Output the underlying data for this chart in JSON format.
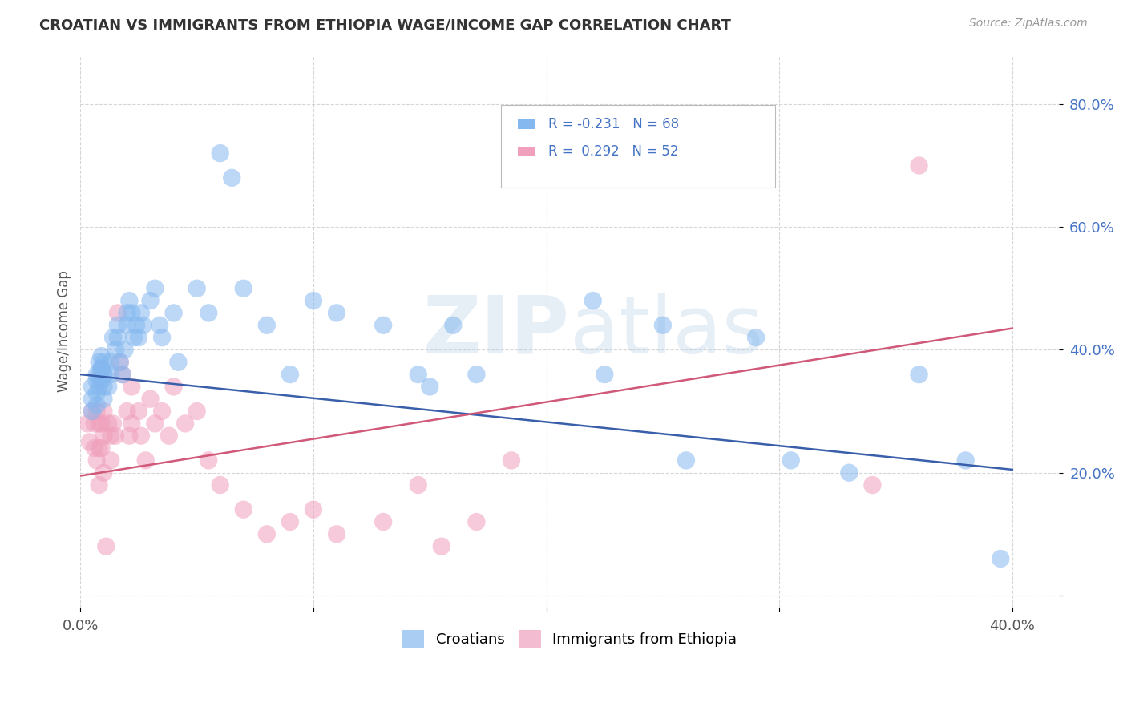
{
  "title": "CROATIAN VS IMMIGRANTS FROM ETHIOPIA WAGE/INCOME GAP CORRELATION CHART",
  "source": "Source: ZipAtlas.com",
  "ylabel": "Wage/Income Gap",
  "xlim": [
    0.0,
    0.42
  ],
  "ylim": [
    -0.02,
    0.88
  ],
  "yticks": [
    0.0,
    0.2,
    0.4,
    0.6,
    0.8
  ],
  "xticks": [
    0.0,
    0.1,
    0.2,
    0.3,
    0.4
  ],
  "background_color": "#ffffff",
  "grid_color": "#cccccc",
  "croatians_color": "#85b8ef",
  "ethiopia_color": "#f0a0bc",
  "line_blue": "#3a5faa",
  "line_pink": "#d05878",
  "label_blue": "#4472c4",
  "blue_x": [
    0.005,
    0.005,
    0.005,
    0.007,
    0.007,
    0.007,
    0.007,
    0.008,
    0.008,
    0.008,
    0.009,
    0.009,
    0.009,
    0.009,
    0.01,
    0.01,
    0.01,
    0.01,
    0.01,
    0.012,
    0.013,
    0.013,
    0.014,
    0.015,
    0.016,
    0.016,
    0.017,
    0.018,
    0.019,
    0.02,
    0.02,
    0.021,
    0.022,
    0.023,
    0.024,
    0.025,
    0.026,
    0.027,
    0.03,
    0.032,
    0.034,
    0.035,
    0.04,
    0.042,
    0.05,
    0.055,
    0.06,
    0.065,
    0.07,
    0.08,
    0.09,
    0.1,
    0.11,
    0.13,
    0.145,
    0.15,
    0.16,
    0.17,
    0.22,
    0.225,
    0.25,
    0.26,
    0.29,
    0.305,
    0.33,
    0.36,
    0.38,
    0.395
  ],
  "blue_y": [
    0.34,
    0.32,
    0.3,
    0.36,
    0.35,
    0.33,
    0.31,
    0.38,
    0.36,
    0.34,
    0.37,
    0.39,
    0.37,
    0.35,
    0.36,
    0.34,
    0.32,
    0.38,
    0.36,
    0.34,
    0.38,
    0.36,
    0.42,
    0.4,
    0.44,
    0.42,
    0.38,
    0.36,
    0.4,
    0.46,
    0.44,
    0.48,
    0.46,
    0.42,
    0.44,
    0.42,
    0.46,
    0.44,
    0.48,
    0.5,
    0.44,
    0.42,
    0.46,
    0.38,
    0.5,
    0.46,
    0.72,
    0.68,
    0.5,
    0.44,
    0.36,
    0.48,
    0.46,
    0.44,
    0.36,
    0.34,
    0.44,
    0.36,
    0.48,
    0.36,
    0.44,
    0.22,
    0.42,
    0.22,
    0.2,
    0.36,
    0.22,
    0.06
  ],
  "pink_x": [
    0.003,
    0.004,
    0.005,
    0.006,
    0.006,
    0.007,
    0.007,
    0.008,
    0.008,
    0.008,
    0.009,
    0.009,
    0.01,
    0.01,
    0.01,
    0.011,
    0.012,
    0.013,
    0.013,
    0.014,
    0.015,
    0.016,
    0.017,
    0.018,
    0.02,
    0.021,
    0.022,
    0.022,
    0.025,
    0.026,
    0.028,
    0.03,
    0.032,
    0.035,
    0.038,
    0.04,
    0.045,
    0.05,
    0.055,
    0.06,
    0.07,
    0.08,
    0.09,
    0.1,
    0.11,
    0.13,
    0.145,
    0.155,
    0.17,
    0.185,
    0.34,
    0.36
  ],
  "pink_y": [
    0.28,
    0.25,
    0.3,
    0.28,
    0.24,
    0.3,
    0.22,
    0.28,
    0.24,
    0.18,
    0.28,
    0.24,
    0.3,
    0.26,
    0.2,
    0.08,
    0.28,
    0.26,
    0.22,
    0.28,
    0.26,
    0.46,
    0.38,
    0.36,
    0.3,
    0.26,
    0.34,
    0.28,
    0.3,
    0.26,
    0.22,
    0.32,
    0.28,
    0.3,
    0.26,
    0.34,
    0.28,
    0.3,
    0.22,
    0.18,
    0.14,
    0.1,
    0.12,
    0.14,
    0.1,
    0.12,
    0.18,
    0.08,
    0.12,
    0.22,
    0.18,
    0.7
  ],
  "blue_line_x0": 0.0,
  "blue_line_x1": 0.4,
  "blue_line_y0": 0.36,
  "blue_line_y1": 0.205,
  "pink_line_x0": 0.0,
  "pink_line_x1": 0.4,
  "pink_line_y0": 0.195,
  "pink_line_y1": 0.435
}
